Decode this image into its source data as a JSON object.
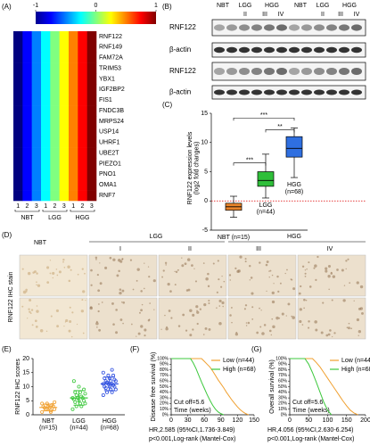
{
  "panel_labels": [
    "(A)",
    "(B)",
    "(C)",
    "(D)",
    "(E)",
    "(F)",
    "(G)"
  ],
  "blot": {
    "row_labels": [
      "RNF122",
      "β-actin",
      "RNF122",
      "β-actin"
    ],
    "groups": [
      "NBT",
      "LGG",
      "HGG",
      "NBT",
      "LGG",
      "HGG"
    ],
    "grades": [
      "II",
      "III",
      "IV",
      "II",
      "III",
      "IV"
    ]
  },
  "ihc": {
    "groups": [
      "NBT",
      "LGG",
      "HGG"
    ],
    "grades": [
      "I",
      "II",
      "III",
      "IV"
    ],
    "ylabel": "RNF122 IHC stain"
  },
  "chart_data": [
    {
      "type": "heatmap",
      "genes": [
        "RNF122",
        "RNF149",
        "FAM72A",
        "TRIM53",
        "YBX1",
        "IGF2BP2",
        "FIS1",
        "FNDC3B",
        "MRPS24",
        "USP14",
        "UHRF1",
        "UBE2T",
        "PIEZO1",
        "PNO1",
        "OMA1",
        "RNF7"
      ],
      "columns": [
        "1",
        "2",
        "3",
        "1",
        "2",
        "3",
        "1",
        "2",
        "3"
      ],
      "groups": [
        "NBT",
        "LGG",
        "HGG"
      ],
      "clim": [
        -1,
        1
      ],
      "colorbar_ticks": [
        -1,
        0,
        1
      ],
      "values": [
        [
          -1,
          -0.75,
          -0.5,
          -0.25,
          0,
          0.25,
          0.5,
          0.75,
          1
        ],
        [
          -1,
          -0.75,
          -0.5,
          -0.25,
          0,
          0.25,
          0.5,
          0.75,
          1
        ],
        [
          -1,
          -0.75,
          -0.5,
          -0.25,
          0,
          0.25,
          0.5,
          0.75,
          1
        ],
        [
          -1,
          -0.75,
          -0.5,
          -0.25,
          0,
          0.25,
          0.5,
          0.75,
          1
        ],
        [
          -1,
          -0.75,
          -0.5,
          -0.25,
          0,
          0.25,
          0.5,
          0.75,
          1
        ],
        [
          -1,
          -0.75,
          -0.5,
          -0.25,
          0,
          0.25,
          0.5,
          0.75,
          1
        ],
        [
          -1,
          -0.75,
          -0.5,
          -0.25,
          0,
          0.25,
          0.5,
          0.75,
          1
        ],
        [
          -1,
          -0.75,
          -0.5,
          -0.25,
          0,
          0.25,
          0.5,
          0.75,
          1
        ],
        [
          -1,
          -0.75,
          -0.5,
          -0.25,
          0,
          0.25,
          0.5,
          0.75,
          1
        ],
        [
          -1,
          -0.75,
          -0.5,
          -0.25,
          0,
          0.25,
          0.5,
          0.75,
          1
        ],
        [
          -1,
          -0.75,
          -0.5,
          -0.25,
          0,
          0.25,
          0.5,
          0.75,
          1
        ],
        [
          -1,
          -0.75,
          -0.5,
          -0.25,
          0,
          0.25,
          0.5,
          0.75,
          1
        ],
        [
          -1,
          -0.75,
          -0.5,
          -0.25,
          0,
          0.25,
          0.5,
          0.75,
          1
        ],
        [
          -1,
          -0.75,
          -0.5,
          -0.25,
          0,
          0.25,
          0.5,
          0.75,
          1
        ],
        [
          -1,
          -0.75,
          -0.5,
          -0.25,
          0,
          0.25,
          0.5,
          0.75,
          1
        ],
        [
          -1,
          -0.75,
          -0.5,
          -0.25,
          0,
          0.25,
          0.5,
          0.75,
          1
        ]
      ]
    },
    {
      "type": "box",
      "ylabel": "RNF122 expression levels\n(log2 fold changes)",
      "categories": [
        "NBT (n=15)",
        "LGG\n(n=44)",
        "HGG\n(n=68)"
      ],
      "boxes": [
        {
          "color": "#e8842a",
          "min": -2.8,
          "q1": -1.6,
          "median": -1,
          "q3": -0.4,
          "max": 0.8
        },
        {
          "color": "#2fbf3a",
          "min": 0.5,
          "q1": 2.5,
          "median": 3.5,
          "q3": 5,
          "max": 8
        },
        {
          "color": "#2f6fe0",
          "min": 4,
          "q1": 7.5,
          "median": 9,
          "q3": 11,
          "max": 12.5
        }
      ],
      "ref_line": 0,
      "annotations": [
        "***",
        "***",
        "**"
      ],
      "ylim": [
        -5,
        15
      ],
      "yticks": [
        -5,
        0,
        5,
        10,
        15
      ]
    },
    {
      "type": "dot",
      "ylabel": "RNF122 IHC scores",
      "categories": [
        "NBT\n(n=15)",
        "LGG\n(n=44)",
        "HGG\n(n=68)"
      ],
      "groups": [
        {
          "color": "#f0a030",
          "mean": 2.6,
          "sd": 1.2,
          "values": [
            1,
            1.5,
            2,
            2,
            2.5,
            2.5,
            3,
            3,
            3,
            3.5,
            4,
            4,
            1,
            2,
            4.5
          ]
        },
        {
          "color": "#3cc83c",
          "mean": 6,
          "sd": 2.6,
          "values": [
            2,
            3,
            3,
            4,
            4,
            4.5,
            5,
            5,
            5.5,
            6,
            6,
            6,
            6.5,
            7,
            7.5,
            8,
            8,
            9,
            10,
            12
          ]
        },
        {
          "color": "#3050e0",
          "mean": 11,
          "sd": 2.4,
          "values": [
            7,
            8,
            8,
            9,
            9,
            9.5,
            10,
            10,
            10,
            10.5,
            11,
            11,
            11,
            11.5,
            12,
            12,
            12,
            12.5,
            13,
            13,
            14,
            14,
            15,
            16
          ]
        }
      ],
      "ylim": [
        0,
        20
      ],
      "yticks": [
        0,
        5,
        10,
        15,
        20
      ]
    },
    {
      "type": "survival",
      "ylabel": "Disease free survival (%)",
      "xlabel": "Time (weeks)",
      "annotations": [
        "Cut off=5.6",
        "HR,2.585 (95%CI,1.736-3.849)",
        "p<0.001,Log-rank (Mantel-Cox)"
      ],
      "series": [
        {
          "name": "Low (n=44)",
          "color": "#f0a030",
          "x": [
            0,
            55,
            60,
            65,
            70,
            75,
            80,
            85,
            90,
            95,
            100,
            105,
            110,
            115,
            120,
            125,
            130,
            135,
            140
          ],
          "values": [
            100,
            100,
            95,
            90,
            85,
            78,
            70,
            62,
            55,
            48,
            40,
            33,
            26,
            20,
            14,
            9,
            5,
            2,
            0
          ]
        },
        {
          "name": "High (n=68)",
          "color": "#3cc83c",
          "x": [
            0,
            35,
            40,
            45,
            50,
            55,
            60,
            65,
            70,
            75,
            80,
            85,
            90,
            95
          ],
          "values": [
            100,
            100,
            92,
            82,
            70,
            58,
            47,
            36,
            26,
            17,
            10,
            5,
            2,
            0
          ]
        }
      ],
      "xlim": [
        0,
        150
      ],
      "xticks": [
        0,
        30,
        60,
        90,
        120,
        150
      ],
      "ylim": [
        0,
        100
      ],
      "yticks": [
        {
          "value": 0,
          "label": "0%"
        },
        {
          "value": 10,
          "label": "10%"
        },
        {
          "value": 20,
          "label": "20%"
        },
        {
          "value": 30,
          "label": "30%"
        },
        {
          "value": 40,
          "label": "40%"
        },
        {
          "value": 50,
          "label": "50%"
        },
        {
          "value": 60,
          "label": "60%"
        },
        {
          "value": 70,
          "label": "70%"
        },
        {
          "value": 80,
          "label": "80%"
        },
        {
          "value": 90,
          "label": "90%"
        },
        {
          "value": 100,
          "label": "100%"
        }
      ]
    },
    {
      "type": "survival",
      "ylabel": "Overall survival (%)",
      "xlabel": "Time (weeks)",
      "annotations": [
        "Cut off=5.6",
        "HR,4.056 (95%CI,2.630-6.254)",
        "p<0.001,Log-rank (Mantel-Cox)"
      ],
      "series": [
        {
          "name": "Low (n=44)",
          "color": "#f0a030",
          "x": [
            0,
            60,
            70,
            80,
            90,
            100,
            110,
            120,
            130,
            140,
            150,
            160,
            170,
            180
          ],
          "values": [
            100,
            100,
            93,
            85,
            75,
            65,
            55,
            45,
            35,
            25,
            16,
            8,
            3,
            0
          ]
        },
        {
          "name": "High (n=68)",
          "color": "#3cc83c",
          "x": [
            0,
            40,
            50,
            60,
            70,
            80,
            90,
            100,
            110
          ],
          "values": [
            100,
            100,
            90,
            75,
            58,
            40,
            22,
            8,
            0
          ]
        }
      ],
      "xlim": [
        0,
        200
      ],
      "xticks": [
        0,
        50,
        100,
        150,
        200
      ],
      "ylim": [
        0,
        100
      ],
      "yticks": [
        {
          "value": 0,
          "label": "0%"
        },
        {
          "value": 10,
          "label": "10%"
        },
        {
          "value": 20,
          "label": "20%"
        },
        {
          "value": 30,
          "label": "30%"
        },
        {
          "value": 40,
          "label": "40%"
        },
        {
          "value": 50,
          "label": "50%"
        },
        {
          "value": 60,
          "label": "60%"
        },
        {
          "value": 70,
          "label": "70%"
        },
        {
          "value": 80,
          "label": "80%"
        },
        {
          "value": 90,
          "label": "90%"
        },
        {
          "value": 100,
          "label": "100%"
        }
      ]
    }
  ]
}
